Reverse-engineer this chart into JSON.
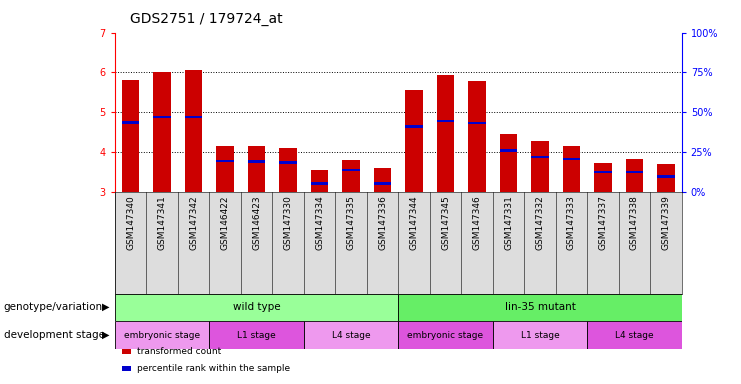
{
  "title": "GDS2751 / 179724_at",
  "samples": [
    "GSM147340",
    "GSM147341",
    "GSM147342",
    "GSM146422",
    "GSM146423",
    "GSM147330",
    "GSM147334",
    "GSM147335",
    "GSM147336",
    "GSM147344",
    "GSM147345",
    "GSM147346",
    "GSM147331",
    "GSM147332",
    "GSM147333",
    "GSM147337",
    "GSM147338",
    "GSM147339"
  ],
  "transformed_count": [
    5.8,
    6.0,
    6.05,
    4.15,
    4.15,
    4.1,
    3.55,
    3.8,
    3.6,
    5.55,
    5.93,
    5.78,
    4.45,
    4.28,
    4.15,
    3.72,
    3.82,
    3.7
  ],
  "percentile_rank": [
    4.75,
    4.88,
    4.88,
    3.78,
    3.76,
    3.75,
    3.22,
    3.55,
    3.22,
    4.65,
    4.78,
    4.73,
    4.05,
    3.88,
    3.83,
    3.5,
    3.5,
    3.38
  ],
  "bar_color": "#cc0000",
  "pct_color": "#0000cc",
  "ylim": [
    3.0,
    7.0
  ],
  "yticks_left": [
    3,
    4,
    5,
    6,
    7
  ],
  "yticks_right": [
    0,
    25,
    50,
    75,
    100
  ],
  "groups": {
    "genotype": [
      {
        "label": "wild type",
        "start": 0,
        "end": 9,
        "color": "#99ff99"
      },
      {
        "label": "lin-35 mutant",
        "start": 9,
        "end": 18,
        "color": "#66ee66"
      }
    ],
    "stage": [
      {
        "label": "embryonic stage",
        "start": 0,
        "end": 3,
        "color": "#ee99ee"
      },
      {
        "label": "L1 stage",
        "start": 3,
        "end": 6,
        "color": "#dd55dd"
      },
      {
        "label": "L4 stage",
        "start": 6,
        "end": 9,
        "color": "#ee99ee"
      },
      {
        "label": "embryonic stage",
        "start": 9,
        "end": 12,
        "color": "#dd55dd"
      },
      {
        "label": "L1 stage",
        "start": 12,
        "end": 15,
        "color": "#ee99ee"
      },
      {
        "label": "L4 stage",
        "start": 15,
        "end": 18,
        "color": "#dd55dd"
      }
    ]
  },
  "legend": [
    {
      "label": "transformed count",
      "color": "#cc0000"
    },
    {
      "label": "percentile rank within the sample",
      "color": "#0000cc"
    }
  ],
  "left_label_geno": "genotype/variation",
  "left_label_stage": "development stage",
  "title_fontsize": 10,
  "tick_fontsize": 6.5,
  "label_fontsize": 7.5,
  "bar_width": 0.55
}
